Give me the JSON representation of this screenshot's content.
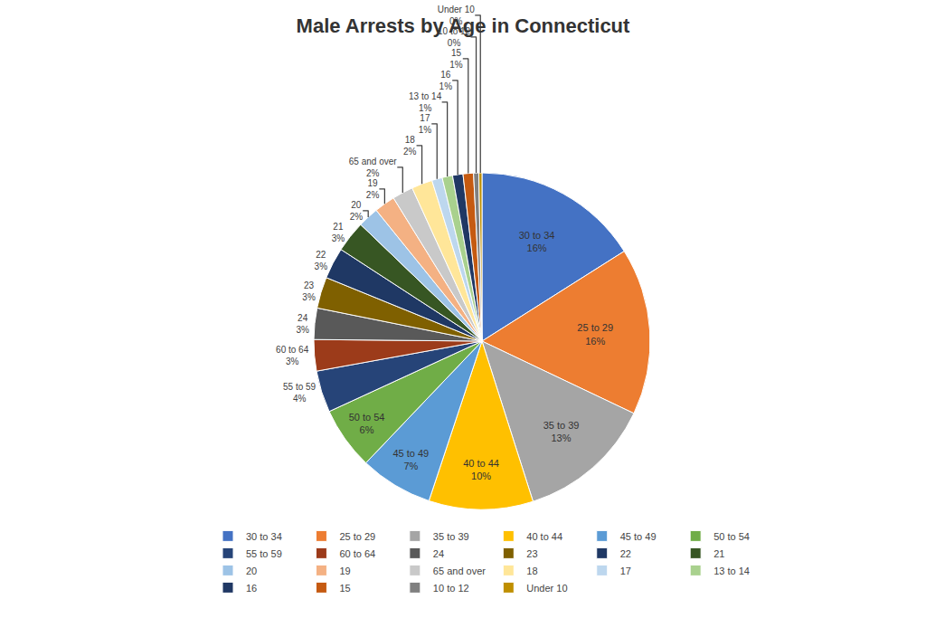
{
  "chart_data": {
    "type": "pie",
    "title": "Male Arrests by Age in Connecticut",
    "categories": [
      "30 to 34",
      "25 to 29",
      "35 to 39",
      "40 to 44",
      "45 to 49",
      "50 to 54",
      "55 to 59",
      "60 to 64",
      "24",
      "23",
      "22",
      "21",
      "20",
      "19",
      "65 and over",
      "18",
      "17",
      "13 to 14",
      "16",
      "15",
      "10 to 12",
      "Under 10"
    ],
    "values": [
      16,
      16,
      13,
      10,
      7,
      6,
      4,
      3,
      3,
      3,
      3,
      3,
      2,
      2,
      2,
      2,
      1,
      1,
      1,
      1,
      0.5,
      0.3
    ],
    "value_labels": [
      "16%",
      "16%",
      "13%",
      "10%",
      "7%",
      "6%",
      "4%",
      "3%",
      "3%",
      "3%",
      "3%",
      "3%",
      "2%",
      "2%",
      "2%",
      "2%",
      "1%",
      "1%",
      "1%",
      "1%",
      "0%",
      "0%"
    ],
    "colors": [
      "#4472C4",
      "#ED7D31",
      "#A5A5A5",
      "#FFC000",
      "#5B9BD5",
      "#70AD47",
      "#264478",
      "#9C3B1A",
      "#595959",
      "#7F6000",
      "#1F3864",
      "#375623",
      "#9DC3E6",
      "#F4B183",
      "#C9C9C9",
      "#FFE699",
      "#BDD7EE",
      "#A9D18E",
      "#203864",
      "#C55A11",
      "#808080",
      "#BF8F00"
    ],
    "data_labels": true,
    "legend": "bottom"
  }
}
